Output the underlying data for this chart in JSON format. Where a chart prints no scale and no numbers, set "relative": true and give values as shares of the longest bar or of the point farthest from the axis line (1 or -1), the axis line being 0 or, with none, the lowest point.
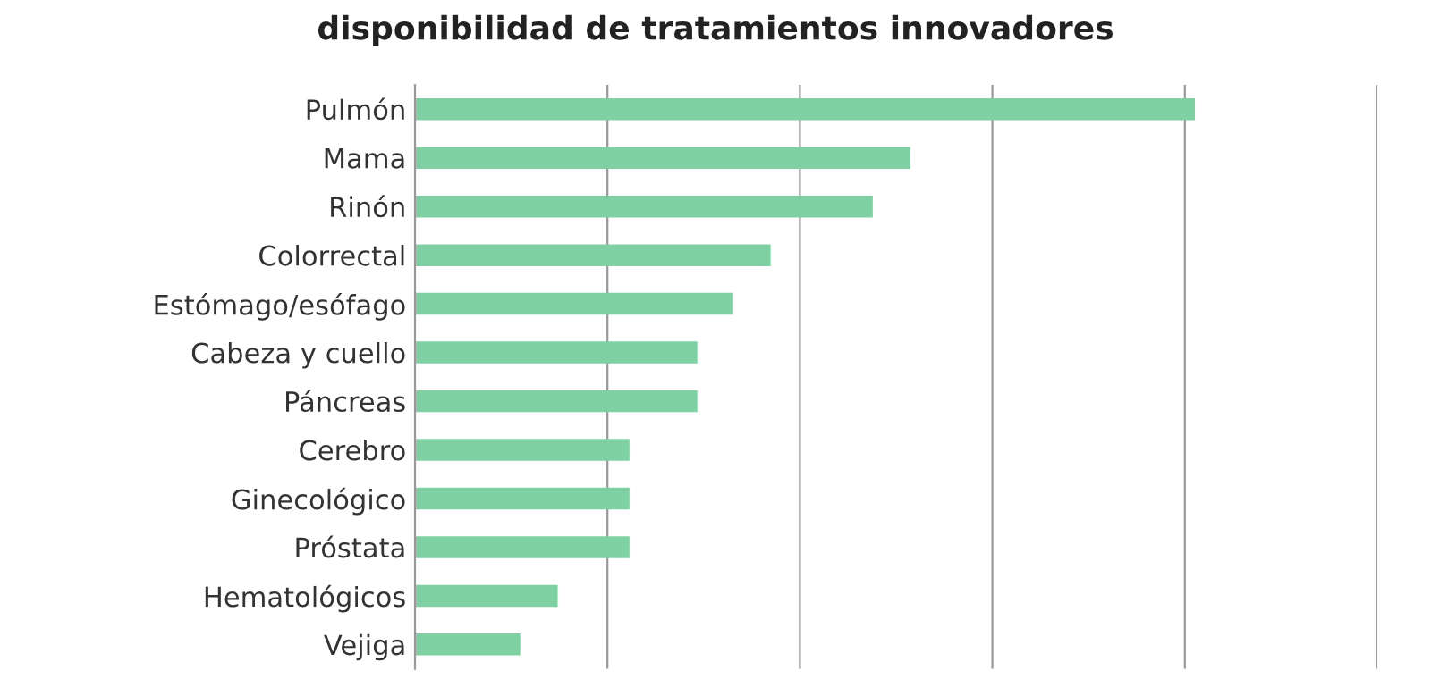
{
  "chart_data": {
    "type": "bar",
    "orientation": "horizontal",
    "relative": true,
    "title": "disponibilidad de tratamientos innovadores",
    "categories": [
      "Pulmón",
      "Mama",
      "Rinón",
      "Colorrectal",
      "Estómago/esófago",
      "Cabeza y cuello",
      "Páncreas",
      "Cerebro",
      "Ginecológico",
      "Próstata",
      "Hematológicos",
      "Vejiga"
    ],
    "values": [
      1,
      0.635,
      0.587,
      0.456,
      0.408,
      0.362,
      0.362,
      0.275,
      0.275,
      0.275,
      0.183,
      0.135
    ],
    "color": "#7fd1a4",
    "grid": "x"
  }
}
